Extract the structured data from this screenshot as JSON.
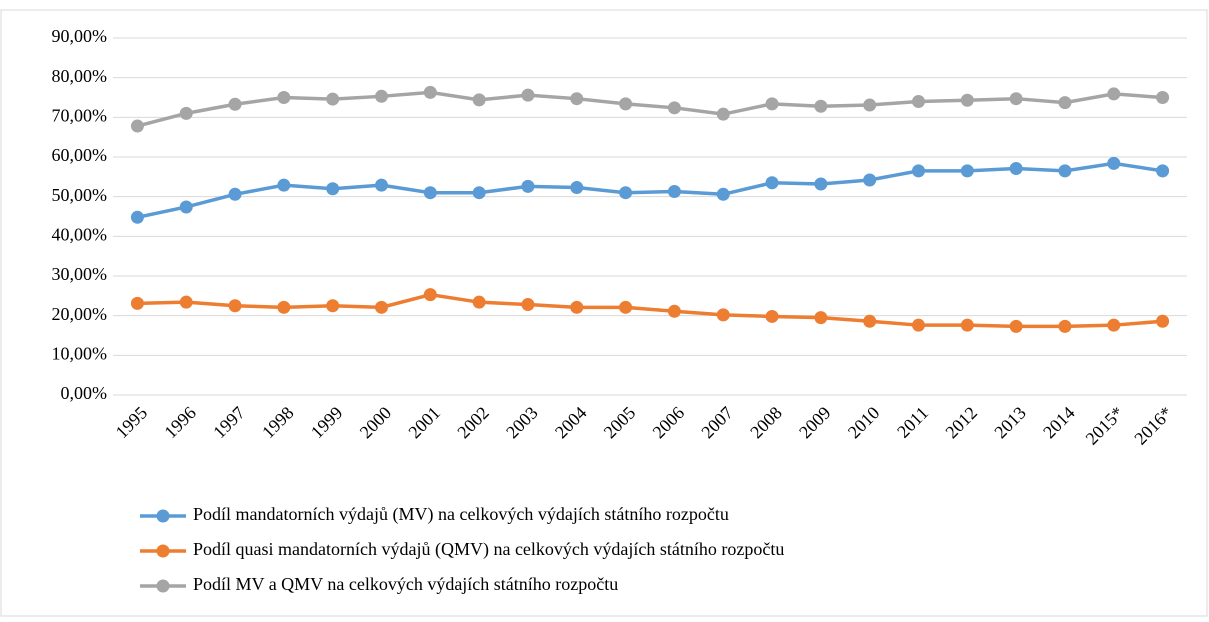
{
  "chart_data": {
    "type": "line",
    "categories": [
      "1995",
      "1996",
      "1997",
      "1998",
      "1999",
      "2000",
      "2001",
      "2002",
      "2003",
      "2004",
      "2005",
      "2006",
      "2007",
      "2008",
      "2009",
      "2010",
      "2011",
      "2012",
      "2013",
      "2014",
      "2015*",
      "2016*"
    ],
    "series": [
      {
        "name": "Podíl mandatorních výdajů (MV) na celkových výdajích státního rozpočtu",
        "color": "#5b9bd5",
        "values": [
          44.8,
          47.4,
          50.6,
          52.9,
          52.0,
          52.9,
          51.0,
          51.0,
          52.6,
          52.3,
          51.0,
          51.3,
          50.6,
          53.5,
          53.2,
          54.2,
          56.5,
          56.5,
          57.1,
          56.5,
          58.4,
          56.5
        ]
      },
      {
        "name": "Podíl quasi mandatorních výdajů (QMV) na celkových výdajích státního rozpočtu",
        "color": "#ed7d31",
        "values": [
          23.1,
          23.4,
          22.5,
          22.1,
          22.5,
          22.1,
          25.3,
          23.4,
          22.8,
          22.1,
          22.1,
          21.1,
          20.2,
          19.8,
          19.5,
          18.6,
          17.6,
          17.6,
          17.3,
          17.3,
          17.6,
          18.6
        ]
      },
      {
        "name": "Podíl MV a QMV na celkových výdajích státního rozpočtu",
        "color": "#a5a5a5",
        "values": [
          67.8,
          71.0,
          73.3,
          75.0,
          74.6,
          75.3,
          76.3,
          74.4,
          75.6,
          74.7,
          73.4,
          72.4,
          70.8,
          73.4,
          72.8,
          73.1,
          74.0,
          74.3,
          74.7,
          73.7,
          75.9,
          75.0
        ]
      }
    ],
    "ylim": [
      0,
      90
    ],
    "yticks": [
      {
        "value": 0,
        "label": "0,00%"
      },
      {
        "value": 10,
        "label": "10,00%"
      },
      {
        "value": 20,
        "label": "20,00%"
      },
      {
        "value": 30,
        "label": "30,00%"
      },
      {
        "value": 40,
        "label": "40,00%"
      },
      {
        "value": 50,
        "label": "50,00%"
      },
      {
        "value": 60,
        "label": "60,00%"
      },
      {
        "value": 70,
        "label": "70,00%"
      },
      {
        "value": 80,
        "label": "80,00%"
      },
      {
        "value": 90,
        "label": "90,00%"
      }
    ],
    "grid": true,
    "legend": "bottom"
  }
}
